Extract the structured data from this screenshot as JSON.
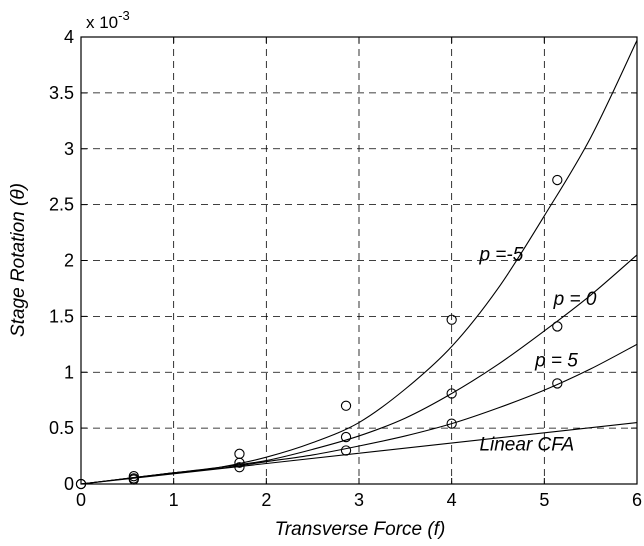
{
  "chart_data": {
    "type": "line",
    "xlabel": "Transverse Force (f)",
    "ylabel": "Stage Rotation (θ)",
    "y_multiplier": {
      "base": "x 10",
      "exponent": "-3"
    },
    "xlim": [
      0,
      6
    ],
    "ylim": [
      0,
      4
    ],
    "x_ticks": [
      "0",
      "1",
      "2",
      "3",
      "4",
      "5",
      "6"
    ],
    "y_ticks": [
      "0",
      "0.5",
      "1",
      "1.5",
      "2",
      "2.5",
      "3",
      "3.5",
      "4"
    ],
    "grid": true,
    "series": [
      {
        "name": "p =-5",
        "x": [
          0,
          0.5,
          1,
          1.5,
          2,
          2.5,
          3,
          3.5,
          4,
          4.5,
          5,
          5.5,
          6
        ],
        "y": [
          0,
          0.05,
          0.1,
          0.15,
          0.24,
          0.37,
          0.55,
          0.85,
          1.23,
          1.75,
          2.4,
          3.1,
          3.97
        ]
      },
      {
        "name": "p = 0",
        "x": [
          0,
          0.5,
          1,
          1.5,
          2,
          2.5,
          3,
          3.5,
          4,
          4.5,
          5,
          5.5,
          6
        ],
        "y": [
          0,
          0.05,
          0.1,
          0.15,
          0.21,
          0.31,
          0.43,
          0.59,
          0.81,
          1.07,
          1.37,
          1.69,
          2.05
        ]
      },
      {
        "name": "p = 5",
        "x": [
          0,
          0.5,
          1,
          1.5,
          2,
          2.5,
          3,
          3.5,
          4,
          4.5,
          5,
          5.5,
          6
        ],
        "y": [
          0,
          0.05,
          0.1,
          0.14,
          0.2,
          0.26,
          0.34,
          0.43,
          0.54,
          0.68,
          0.84,
          1.03,
          1.25
        ]
      },
      {
        "name": "Linear CFA",
        "x": [
          0,
          6
        ],
        "y": [
          0,
          0.55
        ]
      }
    ],
    "markers": {
      "x": [
        0,
        0,
        0.57,
        0.57,
        0.57,
        1.71,
        1.71,
        1.71,
        2.86,
        2.86,
        2.86,
        4.0,
        4.0,
        4.0,
        5.14,
        5.14,
        5.14
      ],
      "y": [
        0,
        0,
        0.07,
        0.05,
        0.04,
        0.27,
        0.19,
        0.15,
        0.7,
        0.42,
        0.3,
        1.47,
        0.81,
        0.54,
        2.72,
        1.41,
        0.9
      ],
      "style": "open-circle"
    },
    "annotations": [
      {
        "text": "p =-5",
        "x": 4.3,
        "y": 2.0
      },
      {
        "text": "p = 0",
        "x": 5.1,
        "y": 1.6
      },
      {
        "text": "p = 5",
        "x": 4.9,
        "y": 1.05
      },
      {
        "text": "Linear CFA",
        "x": 4.3,
        "y": 0.3
      }
    ]
  }
}
